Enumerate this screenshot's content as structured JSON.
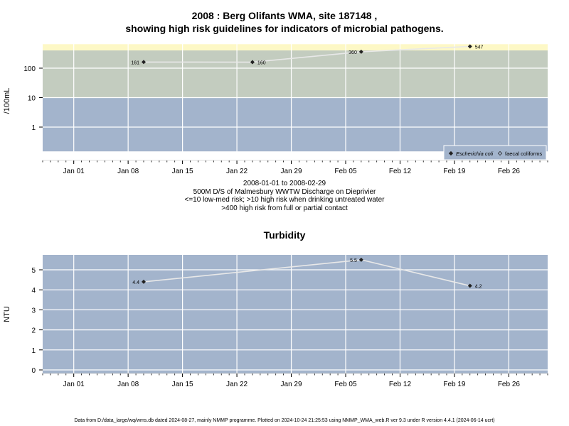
{
  "header": {
    "title_line1": "2008 : Berg Olifants WMA, site 187148 ,",
    "title_line2": "showing high risk guidelines for indicators of microbial pathogens."
  },
  "caption": {
    "date_range": "2008-01-01 to 2008-02-29",
    "site_description": "500M D/S of Malmesbury WWTW Discharge on Dieprivier",
    "guideline_1": "<=10 low-med risk; >10 high risk when drinking untreated water",
    "guideline_2": ">400 high risk from full or partial contact"
  },
  "footer": {
    "text": "Data from D:/data_large/wq/wms.db dated 2024-08-27, mainly NMMP programme. Plotted on 2024-10-24 21:25:53 using NMMP_WMA_web.R ver 9.3 under R version 4.4.1 (2024-06-14 ucrt)"
  },
  "colors": {
    "band_low": "#a3b4cc",
    "band_med": "#c3ccbf",
    "band_high": "#fdf8c6",
    "turbidity_bg": "#a3b4cc",
    "grid": "#ffffff",
    "line": "#e8e8e8",
    "marker": "#222222"
  },
  "chart_data": [
    {
      "type": "line",
      "title": "",
      "xlabel": "",
      "ylabel": "/100mL",
      "y_scale": "log",
      "ylim": [
        0.15,
        650
      ],
      "yticks": [
        1,
        10,
        100
      ],
      "ytick_labels": [
        "1",
        "10",
        "100"
      ],
      "xlim": [
        "2007-12-28",
        "2008-03-02"
      ],
      "xticks": [
        "2008-01-01",
        "2008-01-08",
        "2008-01-15",
        "2008-01-22",
        "2008-01-29",
        "2008-02-05",
        "2008-02-12",
        "2008-02-19",
        "2008-02-26"
      ],
      "xtick_labels": [
        "Jan 01",
        "Jan 08",
        "Jan 15",
        "Jan 22",
        "Jan 29",
        "Feb 05",
        "Feb 12",
        "Feb 19",
        "Feb 26"
      ],
      "guideline_bands": [
        {
          "from": 0.15,
          "to": 10,
          "risk": "low-med"
        },
        {
          "from": 10,
          "to": 400,
          "risk": "high when drinking untreated water"
        },
        {
          "from": 400,
          "to": 650,
          "risk": "high from full or partial contact"
        }
      ],
      "grid": true,
      "legend_position": "bottom-right",
      "legend": [
        {
          "label": "Escherichia coli",
          "marker": "filled-diamond",
          "italic": true
        },
        {
          "label": "faecal coliforms",
          "marker": "open-diamond",
          "italic": false
        }
      ],
      "series": [
        {
          "name": "Escherichia coli",
          "x": [
            "2008-01-10",
            "2008-01-24",
            "2008-02-07",
            "2008-02-21"
          ],
          "y": [
            161,
            160,
            360,
            547
          ],
          "labels": [
            "161",
            "160",
            "360",
            "547"
          ]
        }
      ]
    },
    {
      "type": "line",
      "title": "Turbidity",
      "xlabel": "",
      "ylabel": "NTU",
      "ylim": [
        -0.2,
        5.7
      ],
      "yticks": [
        0,
        1,
        2,
        3,
        4,
        5
      ],
      "ytick_labels": [
        "0",
        "1",
        "2",
        "3",
        "4",
        "5"
      ],
      "xlim": [
        "2007-12-28",
        "2008-03-02"
      ],
      "xticks": [
        "2008-01-01",
        "2008-01-08",
        "2008-01-15",
        "2008-01-22",
        "2008-01-29",
        "2008-02-05",
        "2008-02-12",
        "2008-02-19",
        "2008-02-26"
      ],
      "xtick_labels": [
        "Jan 01",
        "Jan 08",
        "Jan 15",
        "Jan 22",
        "Jan 29",
        "Feb 05",
        "Feb 12",
        "Feb 19",
        "Feb 26"
      ],
      "grid": true,
      "series": [
        {
          "name": "",
          "x": [
            "2008-01-10",
            "2008-02-07",
            "2008-02-21"
          ],
          "y": [
            4.4,
            5.5,
            4.2
          ],
          "labels": [
            "4.4",
            "5.5",
            "4.2"
          ]
        }
      ]
    }
  ]
}
